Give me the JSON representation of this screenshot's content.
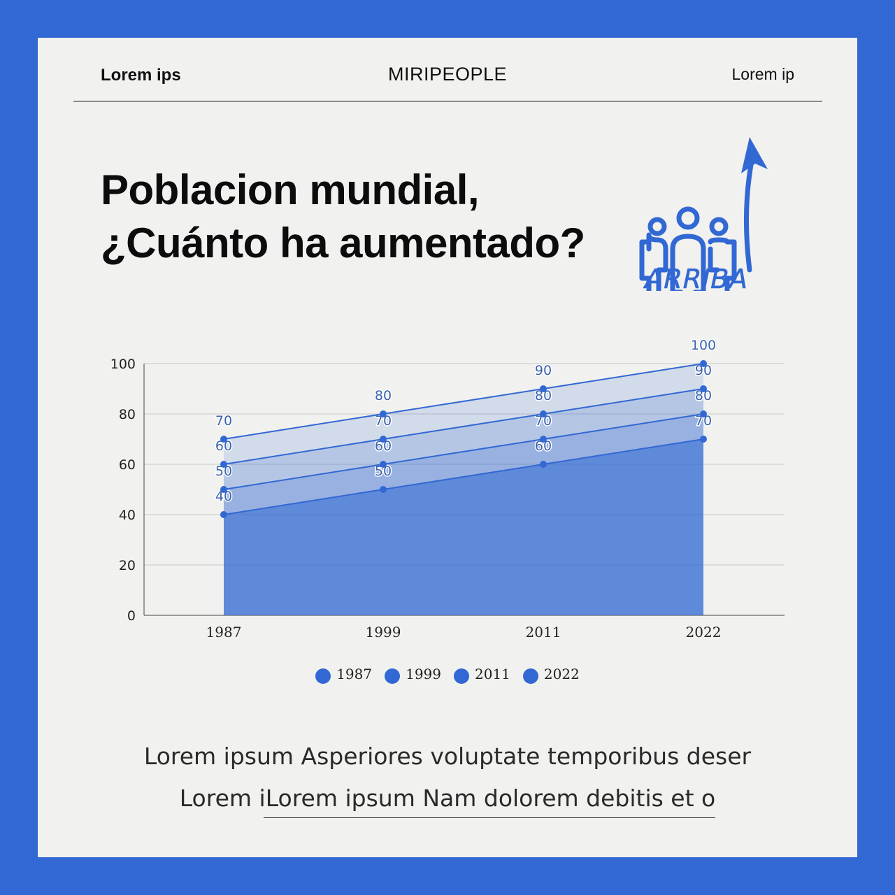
{
  "header": {
    "left": "Lorem ips",
    "center": "MIRIPEOPLE",
    "right": "Lorem ip"
  },
  "title": {
    "line1": "Poblacion mundial,",
    "line2": "¿Cuánto ha aumentado?"
  },
  "logo": {
    "text": "ARRIBA",
    "icon": "people-up-arrow-icon",
    "color": "#3268d3"
  },
  "chart_data": {
    "type": "area",
    "categories": [
      "1987",
      "1999",
      "2011",
      "2022"
    ],
    "series": [
      {
        "name": "1987",
        "values": [
          40,
          50,
          60,
          70
        ]
      },
      {
        "name": "1999",
        "values": [
          50,
          60,
          70,
          80
        ]
      },
      {
        "name": "2011",
        "values": [
          60,
          70,
          80,
          90
        ]
      },
      {
        "name": "2022",
        "values": [
          70,
          80,
          90,
          100
        ]
      }
    ],
    "ylim": [
      0,
      100
    ],
    "yticks": [
      0,
      20,
      40,
      60,
      80,
      100
    ],
    "grid": true,
    "legend": "bottom",
    "colors": {
      "line": "#3268d3",
      "fill": "#3268d3",
      "label": "#3a62b0"
    }
  },
  "legend": [
    "1987",
    "1999",
    "2011",
    "2022"
  ],
  "footer": {
    "line1": "Lorem ipsum Asperiores voluptate temporibus deser",
    "line2": "Lorem iLorem ipsum Nam dolorem debitis et o"
  },
  "colors": {
    "background": "#3268d3",
    "card": "#f1f1ef"
  }
}
